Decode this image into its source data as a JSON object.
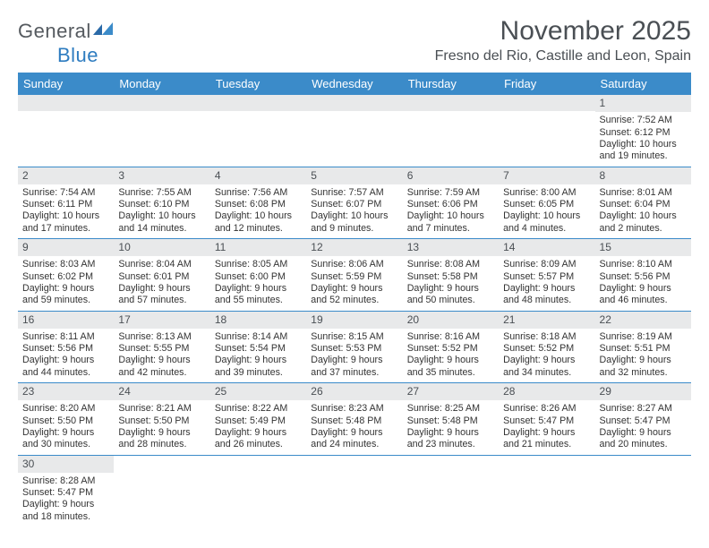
{
  "brand": {
    "name_part1": "General",
    "name_part2": "Blue",
    "color_gray": "#555a5f",
    "color_blue": "#2e7cc0"
  },
  "header": {
    "month_title": "November 2025",
    "location": "Fresno del Rio, Castille and Leon, Spain"
  },
  "colors": {
    "header_bg": "#3b8bc9",
    "header_text": "#ffffff",
    "daynum_bg": "#e8e9ea",
    "text": "#333333",
    "row_border": "#3b8bc9"
  },
  "typography": {
    "month_title_size": 30,
    "location_size": 16,
    "weekday_size": 13,
    "daynum_size": 12,
    "body_size": 10.7
  },
  "weekdays": [
    "Sunday",
    "Monday",
    "Tuesday",
    "Wednesday",
    "Thursday",
    "Friday",
    "Saturday"
  ],
  "weeks": [
    [
      {
        "empty": true
      },
      {
        "empty": true
      },
      {
        "empty": true
      },
      {
        "empty": true
      },
      {
        "empty": true
      },
      {
        "empty": true
      },
      {
        "day": "1",
        "sunrise": "Sunrise: 7:52 AM",
        "sunset": "Sunset: 6:12 PM",
        "daylight": "Daylight: 10 hours and 19 minutes."
      }
    ],
    [
      {
        "day": "2",
        "sunrise": "Sunrise: 7:54 AM",
        "sunset": "Sunset: 6:11 PM",
        "daylight": "Daylight: 10 hours and 17 minutes."
      },
      {
        "day": "3",
        "sunrise": "Sunrise: 7:55 AM",
        "sunset": "Sunset: 6:10 PM",
        "daylight": "Daylight: 10 hours and 14 minutes."
      },
      {
        "day": "4",
        "sunrise": "Sunrise: 7:56 AM",
        "sunset": "Sunset: 6:08 PM",
        "daylight": "Daylight: 10 hours and 12 minutes."
      },
      {
        "day": "5",
        "sunrise": "Sunrise: 7:57 AM",
        "sunset": "Sunset: 6:07 PM",
        "daylight": "Daylight: 10 hours and 9 minutes."
      },
      {
        "day": "6",
        "sunrise": "Sunrise: 7:59 AM",
        "sunset": "Sunset: 6:06 PM",
        "daylight": "Daylight: 10 hours and 7 minutes."
      },
      {
        "day": "7",
        "sunrise": "Sunrise: 8:00 AM",
        "sunset": "Sunset: 6:05 PM",
        "daylight": "Daylight: 10 hours and 4 minutes."
      },
      {
        "day": "8",
        "sunrise": "Sunrise: 8:01 AM",
        "sunset": "Sunset: 6:04 PM",
        "daylight": "Daylight: 10 hours and 2 minutes."
      }
    ],
    [
      {
        "day": "9",
        "sunrise": "Sunrise: 8:03 AM",
        "sunset": "Sunset: 6:02 PM",
        "daylight": "Daylight: 9 hours and 59 minutes."
      },
      {
        "day": "10",
        "sunrise": "Sunrise: 8:04 AM",
        "sunset": "Sunset: 6:01 PM",
        "daylight": "Daylight: 9 hours and 57 minutes."
      },
      {
        "day": "11",
        "sunrise": "Sunrise: 8:05 AM",
        "sunset": "Sunset: 6:00 PM",
        "daylight": "Daylight: 9 hours and 55 minutes."
      },
      {
        "day": "12",
        "sunrise": "Sunrise: 8:06 AM",
        "sunset": "Sunset: 5:59 PM",
        "daylight": "Daylight: 9 hours and 52 minutes."
      },
      {
        "day": "13",
        "sunrise": "Sunrise: 8:08 AM",
        "sunset": "Sunset: 5:58 PM",
        "daylight": "Daylight: 9 hours and 50 minutes."
      },
      {
        "day": "14",
        "sunrise": "Sunrise: 8:09 AM",
        "sunset": "Sunset: 5:57 PM",
        "daylight": "Daylight: 9 hours and 48 minutes."
      },
      {
        "day": "15",
        "sunrise": "Sunrise: 8:10 AM",
        "sunset": "Sunset: 5:56 PM",
        "daylight": "Daylight: 9 hours and 46 minutes."
      }
    ],
    [
      {
        "day": "16",
        "sunrise": "Sunrise: 8:11 AM",
        "sunset": "Sunset: 5:56 PM",
        "daylight": "Daylight: 9 hours and 44 minutes."
      },
      {
        "day": "17",
        "sunrise": "Sunrise: 8:13 AM",
        "sunset": "Sunset: 5:55 PM",
        "daylight": "Daylight: 9 hours and 42 minutes."
      },
      {
        "day": "18",
        "sunrise": "Sunrise: 8:14 AM",
        "sunset": "Sunset: 5:54 PM",
        "daylight": "Daylight: 9 hours and 39 minutes."
      },
      {
        "day": "19",
        "sunrise": "Sunrise: 8:15 AM",
        "sunset": "Sunset: 5:53 PM",
        "daylight": "Daylight: 9 hours and 37 minutes."
      },
      {
        "day": "20",
        "sunrise": "Sunrise: 8:16 AM",
        "sunset": "Sunset: 5:52 PM",
        "daylight": "Daylight: 9 hours and 35 minutes."
      },
      {
        "day": "21",
        "sunrise": "Sunrise: 8:18 AM",
        "sunset": "Sunset: 5:52 PM",
        "daylight": "Daylight: 9 hours and 34 minutes."
      },
      {
        "day": "22",
        "sunrise": "Sunrise: 8:19 AM",
        "sunset": "Sunset: 5:51 PM",
        "daylight": "Daylight: 9 hours and 32 minutes."
      }
    ],
    [
      {
        "day": "23",
        "sunrise": "Sunrise: 8:20 AM",
        "sunset": "Sunset: 5:50 PM",
        "daylight": "Daylight: 9 hours and 30 minutes."
      },
      {
        "day": "24",
        "sunrise": "Sunrise: 8:21 AM",
        "sunset": "Sunset: 5:50 PM",
        "daylight": "Daylight: 9 hours and 28 minutes."
      },
      {
        "day": "25",
        "sunrise": "Sunrise: 8:22 AM",
        "sunset": "Sunset: 5:49 PM",
        "daylight": "Daylight: 9 hours and 26 minutes."
      },
      {
        "day": "26",
        "sunrise": "Sunrise: 8:23 AM",
        "sunset": "Sunset: 5:48 PM",
        "daylight": "Daylight: 9 hours and 24 minutes."
      },
      {
        "day": "27",
        "sunrise": "Sunrise: 8:25 AM",
        "sunset": "Sunset: 5:48 PM",
        "daylight": "Daylight: 9 hours and 23 minutes."
      },
      {
        "day": "28",
        "sunrise": "Sunrise: 8:26 AM",
        "sunset": "Sunset: 5:47 PM",
        "daylight": "Daylight: 9 hours and 21 minutes."
      },
      {
        "day": "29",
        "sunrise": "Sunrise: 8:27 AM",
        "sunset": "Sunset: 5:47 PM",
        "daylight": "Daylight: 9 hours and 20 minutes."
      }
    ],
    [
      {
        "day": "30",
        "sunrise": "Sunrise: 8:28 AM",
        "sunset": "Sunset: 5:47 PM",
        "daylight": "Daylight: 9 hours and 18 minutes."
      },
      {
        "empty": true
      },
      {
        "empty": true
      },
      {
        "empty": true
      },
      {
        "empty": true
      },
      {
        "empty": true
      },
      {
        "empty": true
      }
    ]
  ]
}
